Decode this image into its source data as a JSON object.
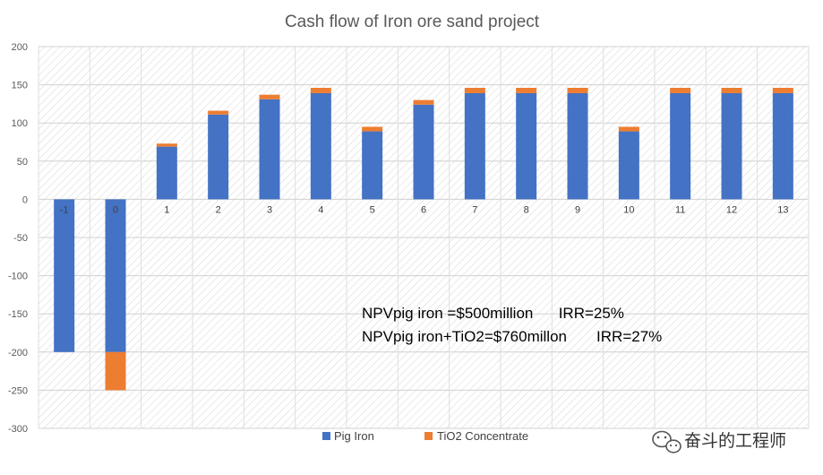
{
  "chart_data": {
    "type": "bar",
    "stacked": true,
    "title": "Cash flow of Iron ore sand project",
    "xlabel": "",
    "ylabel": "",
    "categories": [
      "-1",
      "0",
      "1",
      "2",
      "3",
      "4",
      "5",
      "6",
      "7",
      "8",
      "9",
      "10",
      "11",
      "12",
      "13"
    ],
    "series": [
      {
        "name": "Pig Iron",
        "color": "#4472C4",
        "values": [
          -200,
          -200,
          69,
          111,
          131,
          139,
          89,
          124,
          139,
          139,
          139,
          89,
          139,
          139,
          139
        ]
      },
      {
        "name": "TiO2 Concentrate",
        "color": "#ED7D31",
        "values": [
          0,
          -50,
          4,
          5,
          6,
          7,
          6,
          6,
          7,
          7,
          7,
          6,
          7,
          7,
          7
        ]
      }
    ],
    "ylim": [
      -300,
      200
    ],
    "yticks": [
      200,
      150,
      100,
      50,
      0,
      -50,
      -100,
      -150,
      -200,
      -250,
      -300
    ],
    "grid": true,
    "legend": "bottom",
    "annotations": [
      "NPVpig iron =$500million      IRR=25%",
      "NPVpig iron+TiO2=$760millon       IRR=27%"
    ]
  },
  "watermark": {
    "text": "奋斗的工程师",
    "icon": "wechat-icon"
  }
}
